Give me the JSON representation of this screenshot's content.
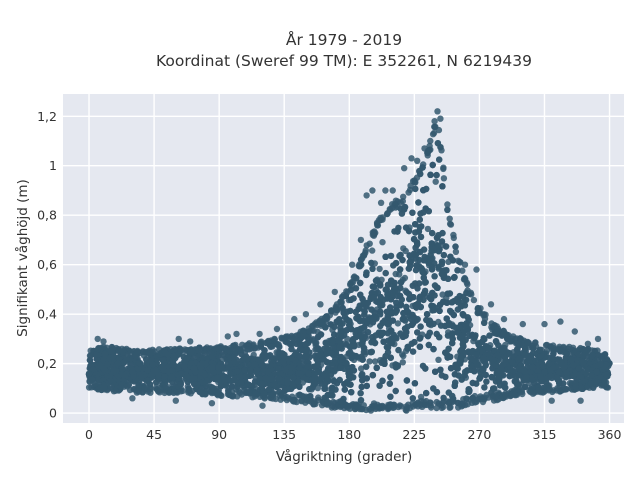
{
  "chart_data": {
    "type": "scatter",
    "title_line1": "År 1979 - 2019",
    "title_line2": "Koordinat (Sweref 99 TM): E 352261, N 6219439",
    "xlabel": "Vågriktning (grader)",
    "ylabel": "Signifikant våghöjd (m)",
    "xlim": [
      -18,
      370
    ],
    "ylim": [
      -0.04,
      1.29
    ],
    "x_ticks": [
      0,
      45,
      90,
      135,
      180,
      225,
      270,
      315,
      360
    ],
    "y_ticks": [
      {
        "value": 0,
        "label": "0"
      },
      {
        "value": 0.2,
        "label": "0,2"
      },
      {
        "value": 0.4,
        "label": "0,4"
      },
      {
        "value": 0.6,
        "label": "0,6"
      },
      {
        "value": 0.8,
        "label": "0,8"
      },
      {
        "value": 1.0,
        "label": "1"
      },
      {
        "value": 1.2,
        "label": "1,2"
      }
    ],
    "grid": true,
    "marker_color": "#34586e",
    "background_color": "#e5e8f0",
    "envelope": {
      "x": [
        0,
        10,
        30,
        45,
        60,
        90,
        120,
        135,
        150,
        160,
        170,
        175,
        180,
        185,
        190,
        195,
        200,
        205,
        210,
        215,
        220,
        225,
        230,
        235,
        238,
        240,
        242,
        245,
        248,
        250,
        255,
        260,
        265,
        270,
        280,
        290,
        300,
        315,
        330,
        345,
        360
      ],
      "upper": [
        0.25,
        0.27,
        0.26,
        0.26,
        0.26,
        0.27,
        0.29,
        0.31,
        0.34,
        0.38,
        0.43,
        0.47,
        0.52,
        0.58,
        0.65,
        0.72,
        0.78,
        0.82,
        0.85,
        0.87,
        0.9,
        0.95,
        1.0,
        1.07,
        1.14,
        1.2,
        1.16,
        1.0,
        0.85,
        0.77,
        0.65,
        0.55,
        0.48,
        0.43,
        0.36,
        0.32,
        0.3,
        0.28,
        0.27,
        0.26,
        0.25
      ],
      "lower": [
        0.1,
        0.09,
        0.08,
        0.08,
        0.08,
        0.07,
        0.06,
        0.05,
        0.04,
        0.03,
        0.02,
        0.02,
        0.01,
        0.01,
        0.01,
        0.01,
        0.01,
        0.01,
        0.01,
        0.01,
        0.01,
        0.02,
        0.02,
        0.02,
        0.02,
        0.02,
        0.02,
        0.02,
        0.02,
        0.02,
        0.02,
        0.03,
        0.03,
        0.04,
        0.05,
        0.06,
        0.07,
        0.08,
        0.09,
        0.1,
        0.1
      ]
    },
    "outliers": [
      {
        "x": 6,
        "y": 0.3
      },
      {
        "x": 10,
        "y": 0.29
      },
      {
        "x": 62,
        "y": 0.3
      },
      {
        "x": 70,
        "y": 0.29
      },
      {
        "x": 96,
        "y": 0.31
      },
      {
        "x": 102,
        "y": 0.32
      },
      {
        "x": 118,
        "y": 0.32
      },
      {
        "x": 130,
        "y": 0.34
      },
      {
        "x": 142,
        "y": 0.38
      },
      {
        "x": 150,
        "y": 0.4
      },
      {
        "x": 160,
        "y": 0.44
      },
      {
        "x": 170,
        "y": 0.49
      },
      {
        "x": 182,
        "y": 0.6
      },
      {
        "x": 188,
        "y": 0.7
      },
      {
        "x": 192,
        "y": 0.88
      },
      {
        "x": 196,
        "y": 0.9
      },
      {
        "x": 202,
        "y": 0.85
      },
      {
        "x": 205,
        "y": 0.9
      },
      {
        "x": 210,
        "y": 0.9
      },
      {
        "x": 218,
        "y": 0.99
      },
      {
        "x": 223,
        "y": 1.03
      },
      {
        "x": 227,
        "y": 1.02
      },
      {
        "x": 232,
        "y": 1.07
      },
      {
        "x": 236,
        "y": 1.1
      },
      {
        "x": 239,
        "y": 1.18
      },
      {
        "x": 241,
        "y": 1.22
      },
      {
        "x": 243,
        "y": 1.19
      },
      {
        "x": 252,
        "y": 0.72
      },
      {
        "x": 260,
        "y": 0.6
      },
      {
        "x": 268,
        "y": 0.58
      },
      {
        "x": 278,
        "y": 0.44
      },
      {
        "x": 287,
        "y": 0.38
      },
      {
        "x": 300,
        "y": 0.36
      },
      {
        "x": 315,
        "y": 0.36
      },
      {
        "x": 326,
        "y": 0.37
      },
      {
        "x": 336,
        "y": 0.33
      },
      {
        "x": 345,
        "y": 0.28
      },
      {
        "x": 352,
        "y": 0.3
      },
      {
        "x": 60,
        "y": 0.05
      },
      {
        "x": 85,
        "y": 0.04
      },
      {
        "x": 120,
        "y": 0.03
      },
      {
        "x": 320,
        "y": 0.05
      },
      {
        "x": 340,
        "y": 0.05
      },
      {
        "x": 30,
        "y": 0.06
      }
    ]
  }
}
